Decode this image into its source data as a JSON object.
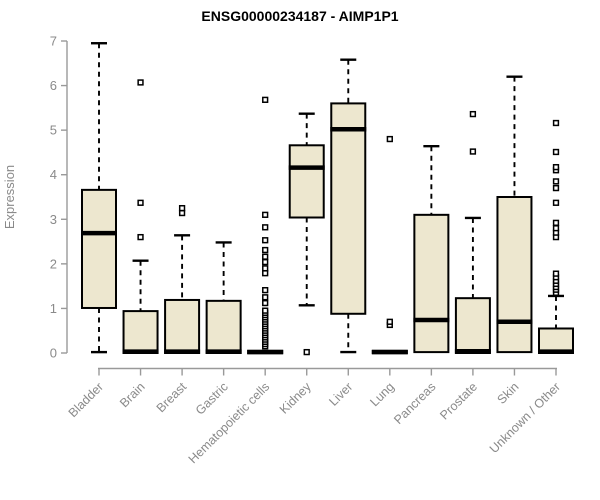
{
  "chart_data": {
    "type": "boxplot",
    "title": "ENSG00000234187 - AIMP1P1",
    "ylabel": "Expression",
    "xlabel": "",
    "ylim": [
      0,
      7
    ],
    "yticks": [
      0,
      1,
      2,
      3,
      4,
      5,
      6,
      7
    ],
    "grid": false,
    "legend": "none",
    "categories": [
      "Bladder",
      "Brain",
      "Breast",
      "Gastric",
      "Hematopoietic cells",
      "Kidney",
      "Liver",
      "Lung",
      "Pancreas",
      "Prostate",
      "Skin",
      "Unknown / Other"
    ],
    "boxes": [
      {
        "category": "Bladder",
        "low": 0.02,
        "q1": 1.01,
        "median": 2.69,
        "q3": 3.66,
        "high": 6.95,
        "outliers": []
      },
      {
        "category": "Brain",
        "low": 0.0,
        "q1": 0.0,
        "median": 0.03,
        "q3": 0.94,
        "high": 2.07,
        "outliers": [
          2.6,
          3.37,
          6.07
        ]
      },
      {
        "category": "Breast",
        "low": 0.0,
        "q1": 0.0,
        "median": 0.03,
        "q3": 1.19,
        "high": 2.64,
        "outliers": [
          3.14,
          3.25
        ]
      },
      {
        "category": "Gastric",
        "low": 0.0,
        "q1": 0.0,
        "median": 0.03,
        "q3": 1.17,
        "high": 2.48,
        "outliers": []
      },
      {
        "category": "Hematopoietic cells",
        "low": 0.0,
        "q1": 0.0,
        "median": 0.02,
        "q3": 0.05,
        "high": 0.05,
        "outliers": [
          0.15,
          0.2,
          0.25,
          0.3,
          0.35,
          0.4,
          0.45,
          0.5,
          0.55,
          0.6,
          0.65,
          0.7,
          0.75,
          0.8,
          0.85,
          0.9,
          0.95,
          1.12,
          1.25,
          1.41,
          1.79,
          1.9,
          2.04,
          2.16,
          2.31,
          2.53,
          2.82,
          3.1,
          5.68
        ]
      },
      {
        "category": "Kidney",
        "low": 1.07,
        "q1": 3.04,
        "median": 4.16,
        "q3": 4.66,
        "high": 5.37,
        "outliers": [
          0.02
        ]
      },
      {
        "category": "Liver",
        "low": 0.02,
        "q1": 0.88,
        "median": 5.02,
        "q3": 5.6,
        "high": 6.58,
        "outliers": []
      },
      {
        "category": "Lung",
        "low": 0.0,
        "q1": 0.0,
        "median": 0.02,
        "q3": 0.05,
        "high": 0.05,
        "outliers": [
          0.63,
          0.7,
          4.8
        ]
      },
      {
        "category": "Pancreas",
        "low": 0.02,
        "q1": 0.02,
        "median": 0.74,
        "q3": 3.1,
        "high": 4.64,
        "outliers": []
      },
      {
        "category": "Prostate",
        "low": 0.0,
        "q1": 0.0,
        "median": 0.04,
        "q3": 1.23,
        "high": 3.03,
        "outliers": [
          4.52,
          5.36
        ]
      },
      {
        "category": "Skin",
        "low": 0.02,
        "q1": 0.02,
        "median": 0.7,
        "q3": 3.5,
        "high": 6.2,
        "outliers": []
      },
      {
        "category": "Unknown / Other",
        "low": 0.0,
        "q1": 0.0,
        "median": 0.03,
        "q3": 0.55,
        "high": 1.28,
        "outliers": [
          1.35,
          1.42,
          1.48,
          1.55,
          1.62,
          1.7,
          1.78,
          2.6,
          2.7,
          2.8,
          2.92,
          3.37,
          3.7,
          3.85,
          4.1,
          4.17,
          4.51,
          5.16
        ]
      }
    ],
    "colors": {
      "box_fill": "#EDE7CF",
      "box_stroke": "#000000",
      "axis": "#999999",
      "tick_label": "#8A8A8A",
      "title": "#000000",
      "background": "#FFFFFF"
    }
  }
}
